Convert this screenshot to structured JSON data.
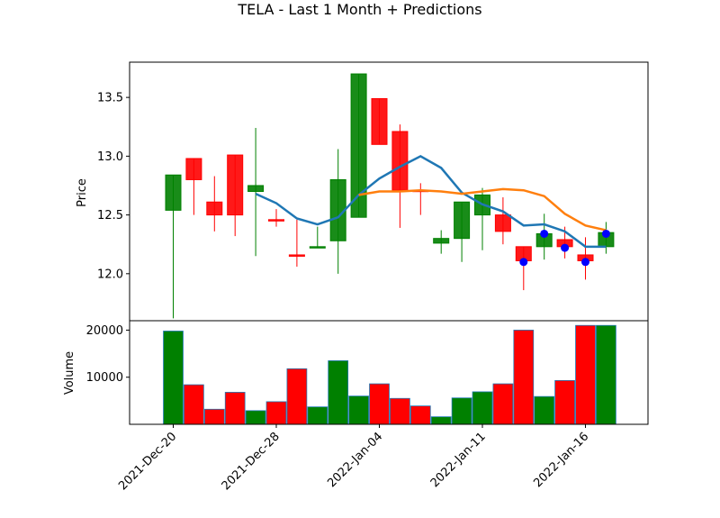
{
  "chart_data": {
    "type": "candlestick",
    "title": "TELA - Last 1 Month + Predictions",
    "price": {
      "ylabel": "Price",
      "ylim": [
        11.6,
        13.8
      ],
      "yticks": [
        "12.0",
        "12.5",
        "13.0",
        "13.5"
      ],
      "ytick_values": [
        12.0,
        12.5,
        13.0,
        13.5
      ],
      "candles": [
        {
          "x": 0,
          "open": 12.54,
          "close": 12.84,
          "high": 12.84,
          "low": 11.62
        },
        {
          "x": 1,
          "open": 12.98,
          "close": 12.8,
          "high": 12.98,
          "low": 12.5
        },
        {
          "x": 2,
          "open": 12.61,
          "close": 12.5,
          "high": 12.83,
          "low": 12.36
        },
        {
          "x": 3,
          "open": 13.01,
          "close": 12.5,
          "high": 13.01,
          "low": 12.32
        },
        {
          "x": 4,
          "open": 12.7,
          "close": 12.75,
          "high": 13.24,
          "low": 12.15
        },
        {
          "x": 5,
          "open": 12.46,
          "close": 12.45,
          "high": 12.55,
          "low": 12.4
        },
        {
          "x": 6,
          "open": 12.16,
          "close": 12.15,
          "high": 12.46,
          "low": 12.06
        },
        {
          "x": 7,
          "open": 12.22,
          "close": 12.23,
          "high": 12.4,
          "low": 12.22
        },
        {
          "x": 8,
          "open": 12.28,
          "close": 12.8,
          "high": 13.06,
          "low": 12.0
        },
        {
          "x": 9,
          "open": 12.48,
          "close": 13.7,
          "high": 13.7,
          "low": 12.48
        },
        {
          "x": 10,
          "open": 13.49,
          "close": 13.1,
          "high": 13.49,
          "low": 13.1
        },
        {
          "x": 11,
          "open": 13.21,
          "close": 12.71,
          "high": 13.27,
          "low": 12.39
        },
        {
          "x": 12,
          "open": 12.71,
          "close": 12.7,
          "high": 12.77,
          "low": 12.5
        },
        {
          "x": 13,
          "open": 12.26,
          "close": 12.3,
          "high": 12.37,
          "low": 12.17
        },
        {
          "x": 14,
          "open": 12.3,
          "close": 12.61,
          "high": 12.61,
          "low": 12.1
        },
        {
          "x": 15,
          "open": 12.5,
          "close": 12.67,
          "high": 12.73,
          "low": 12.2
        },
        {
          "x": 16,
          "open": 12.5,
          "close": 12.36,
          "high": 12.65,
          "low": 12.25
        },
        {
          "x": 17,
          "open": 12.23,
          "close": 12.11,
          "high": 12.23,
          "low": 11.86
        },
        {
          "x": 18,
          "open": 12.23,
          "close": 12.34,
          "high": 12.51,
          "low": 12.12
        },
        {
          "x": 19,
          "open": 12.29,
          "close": 12.23,
          "high": 12.4,
          "low": 12.13
        },
        {
          "x": 20,
          "open": 12.16,
          "close": 12.11,
          "high": 12.31,
          "low": 11.95
        },
        {
          "x": 21,
          "open": 12.23,
          "close": 12.35,
          "high": 12.44,
          "low": 12.17
        }
      ],
      "series": [
        {
          "color": "#1f77b4",
          "x": [
            4,
            5,
            6,
            7,
            8,
            9,
            10,
            11,
            12,
            13,
            14,
            15,
            16,
            17,
            18,
            19,
            20,
            21
          ],
          "values": [
            12.68,
            12.6,
            12.47,
            12.42,
            12.48,
            12.67,
            12.81,
            12.91,
            13.0,
            12.9,
            12.69,
            12.59,
            12.53,
            12.41,
            12.42,
            12.36,
            12.23,
            12.23
          ]
        },
        {
          "color": "#ff7f0e",
          "x": [
            9,
            10,
            11,
            12,
            13,
            14,
            15,
            16,
            17,
            18,
            19,
            20,
            21
          ],
          "values": [
            12.67,
            12.7,
            12.7,
            12.71,
            12.7,
            12.68,
            12.7,
            12.72,
            12.71,
            12.66,
            12.51,
            12.41,
            12.37
          ]
        }
      ],
      "markers": {
        "color": "#0000ff",
        "x": [
          17,
          18,
          19,
          20,
          21
        ],
        "values": [
          12.1,
          12.34,
          12.22,
          12.1,
          12.34
        ]
      }
    },
    "volume": {
      "ylabel": "Volume",
      "ylim": [
        0,
        22000
      ],
      "yticks": [
        "10000",
        "20000"
      ],
      "ytick_values": [
        10000,
        20000
      ],
      "values": [
        19800,
        8400,
        3200,
        6800,
        2900,
        4800,
        11800,
        3700,
        13500,
        6000,
        8600,
        5500,
        3900,
        1600,
        5600,
        6900,
        8600,
        20000,
        5900,
        9300,
        21000,
        21000
      ]
    },
    "xticks": [
      {
        "x": 0,
        "label": "2021-Dec-20"
      },
      {
        "x": 5,
        "label": "2021-Dec-28"
      },
      {
        "x": 10,
        "label": "2022-Jan-04"
      },
      {
        "x": 15,
        "label": "2022-Jan-11"
      },
      {
        "x": 20,
        "label": "2022-Jan-16"
      }
    ],
    "colors": {
      "up": "#008000",
      "down": "#ff0000"
    }
  }
}
